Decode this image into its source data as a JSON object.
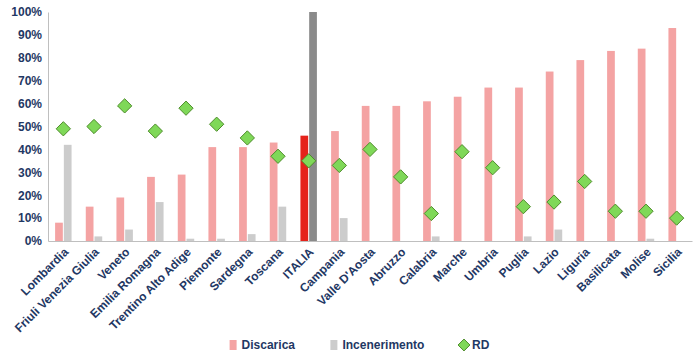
{
  "chart_data": {
    "type": "bar",
    "categories": [
      "Lombardia",
      "Friuli Venezia Giulia",
      "Veneto",
      "Emilia Romagna",
      "Trentino Alto Adige",
      "Piemonte",
      "Sardegna",
      "Toscana",
      "ITALIA",
      "Campania",
      "Valle D'Aosta",
      "Abruzzo",
      "Calabria",
      "Marche",
      "Umbria",
      "Puglia",
      "Lazio",
      "Liguria",
      "Basilicata",
      "Molise",
      "Sicilia"
    ],
    "series": [
      {
        "name": "Discarica",
        "type": "bar",
        "color": "#f4a3a3",
        "colors": [
          "#f4a3a3",
          "#f4a3a3",
          "#f4a3a3",
          "#f4a3a3",
          "#f4a3a3",
          "#f4a3a3",
          "#f4a3a3",
          "#f4a3a3",
          "#e5231b",
          "#f4a3a3",
          "#f4a3a3",
          "#f4a3a3",
          "#f4a3a3",
          "#f4a3a3",
          "#f4a3a3",
          "#f4a3a3",
          "#f4a3a3",
          "#f4a3a3",
          "#f4a3a3",
          "#f4a3a3",
          "#f4a3a3"
        ],
        "values": [
          8,
          15,
          19,
          28,
          29,
          41,
          41,
          43,
          46,
          48,
          59,
          59,
          61,
          63,
          67,
          67,
          74,
          79,
          83,
          84,
          93
        ]
      },
      {
        "name": "Incenerimento",
        "type": "bar",
        "color": "#cccccc",
        "colors": [
          "#cccccc",
          "#cccccc",
          "#cccccc",
          "#cccccc",
          "#cccccc",
          "#cccccc",
          "#cccccc",
          "#cccccc",
          "#8a8a8a",
          "#cccccc",
          "#cccccc",
          "#cccccc",
          "#cccccc",
          "#cccccc",
          "#cccccc",
          "#cccccc",
          "#cccccc",
          "#cccccc",
          "#cccccc",
          "#cccccc",
          "#cccccc"
        ],
        "values": [
          42,
          2,
          5,
          17,
          1,
          1,
          3,
          15,
          100,
          10,
          0,
          0,
          2,
          0,
          0,
          2,
          5,
          0,
          0,
          1,
          0
        ]
      },
      {
        "name": "RD",
        "type": "scatter",
        "marker": "diamond",
        "color": "#7fd858",
        "values": [
          49,
          50,
          59,
          48,
          58,
          51,
          45,
          37,
          35,
          33,
          40,
          28,
          12,
          39,
          32,
          15,
          17,
          26,
          13,
          13,
          10
        ]
      }
    ],
    "ylim": [
      0,
      100
    ],
    "yticks": [
      {
        "value": 0,
        "label": "0%"
      },
      {
        "value": 10,
        "label": "10%"
      },
      {
        "value": 20,
        "label": "20%"
      },
      {
        "value": 30,
        "label": "30%"
      },
      {
        "value": 40,
        "label": "40%"
      },
      {
        "value": 50,
        "label": "50%"
      },
      {
        "value": 60,
        "label": "60%"
      },
      {
        "value": 70,
        "label": "70%"
      },
      {
        "value": 80,
        "label": "80%"
      },
      {
        "value": 90,
        "label": "90%"
      },
      {
        "value": 100,
        "label": "100%"
      }
    ],
    "grid": false,
    "legend": "bottom"
  }
}
